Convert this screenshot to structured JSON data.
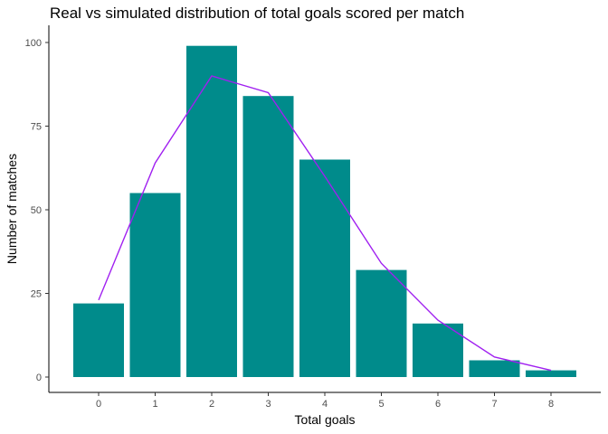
{
  "chart_data": {
    "type": "bar",
    "title": "Real vs simulated distribution of total goals scored per match",
    "xlabel": "Total goals",
    "ylabel": "Number of matches",
    "categories": [
      "0",
      "1",
      "2",
      "3",
      "4",
      "5",
      "6",
      "7",
      "8"
    ],
    "series": [
      {
        "type": "bar",
        "values": [
          22,
          55,
          99,
          84,
          65,
          32,
          16,
          5,
          2
        ],
        "color": "#008b8b"
      },
      {
        "type": "line",
        "values": [
          23,
          64,
          90,
          85,
          60,
          34,
          17,
          6,
          2
        ],
        "color": "#a020f0"
      }
    ],
    "ylim": [
      0,
      100
    ],
    "yticks": [
      0,
      25,
      50,
      75,
      100
    ],
    "grid": false,
    "legend": "none"
  }
}
